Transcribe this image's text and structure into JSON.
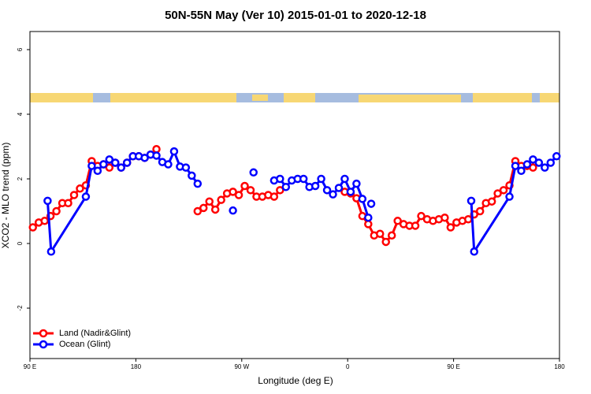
{
  "chart_data": {
    "type": "line",
    "title": "50N-55N May (Ver 10)   2015-01-01 to 2020-12-18",
    "x_label": "Longitude (deg E)",
    "y_label": "XCO2 - MLO trend (ppm)",
    "xlim": [
      87.5,
      540
    ],
    "ylim": [
      -3.56,
      6.56
    ],
    "xticks": [
      {
        "value": 90,
        "label": "90 E"
      },
      180,
      {
        "value": 270,
        "label": "90 W"
      },
      {
        "value": 360,
        "label": "0"
      },
      {
        "value": 450,
        "label": "90 E"
      },
      {
        "value": 540,
        "label": "180"
      }
    ],
    "yticks": [
      -2,
      0,
      2,
      4,
      6
    ],
    "legend": "bottom-left",
    "series": [
      {
        "name": "Land (Nadir&Glint)",
        "color": "#ff0000",
        "x": [
          92.5,
          97.5,
          102.5,
          107.5,
          112.5,
          117.5,
          122.5,
          127.5,
          132.5,
          137.5,
          142.5,
          147.5,
          152.5,
          157.5,
          162.5,
          167.5,
          172.5,
          177.5,
          182.5,
          187.5,
          192.5,
          197.5,
          null,
          232.5,
          237.5,
          242.5,
          247.5,
          252.5,
          257.5,
          262.5,
          267.5,
          272.5,
          277.5,
          282.5,
          287.5,
          292.5,
          297.5,
          302.5,
          null,
          357.5,
          362.5,
          367.5,
          372.5,
          377.5,
          382.5,
          387.5,
          392.5,
          397.5,
          402.5,
          407.5,
          412.5,
          417.5,
          422.5,
          427.5,
          432.5,
          437.5,
          442.5,
          447.5,
          452.5,
          457.5,
          462.5,
          467.5,
          472.5,
          477.5,
          482.5,
          487.5,
          492.5,
          497.5,
          502.5,
          507.5,
          512.5,
          517.5
        ],
        "values": [
          0.5,
          0.65,
          0.7,
          0.85,
          1.0,
          1.25,
          1.25,
          1.5,
          1.7,
          1.8,
          2.55,
          2.4,
          2.45,
          2.35,
          2.5,
          2.35,
          2.5,
          2.7,
          2.7,
          2.65,
          2.75,
          2.92,
          null,
          1.0,
          1.1,
          1.3,
          1.05,
          1.35,
          1.55,
          1.6,
          1.5,
          1.78,
          1.65,
          1.45,
          1.45,
          1.5,
          1.45,
          1.65,
          null,
          1.6,
          1.55,
          1.4,
          0.85,
          0.6,
          0.25,
          0.3,
          0.05,
          0.25,
          0.7,
          0.6,
          0.55,
          0.55,
          0.85,
          0.75,
          0.7,
          0.75,
          0.8,
          0.5,
          0.65,
          0.7,
          0.75,
          0.9,
          1.0,
          1.25,
          1.3,
          1.55,
          1.65,
          1.8,
          2.55,
          2.4,
          2.4,
          2.35
        ]
      },
      {
        "name": "Ocean (Glint)",
        "color": "#0000ff",
        "x": [
          105,
          108,
          137.5,
          142.5,
          147.5,
          152.5,
          157.5,
          162.5,
          167.5,
          172.5,
          177.5,
          182.5,
          187.5,
          192.5,
          197.5,
          202.5,
          207.5,
          212.5,
          217.5,
          222.5,
          227.5,
          232.5,
          null,
          262.5,
          null,
          280,
          null,
          297.5,
          302.5,
          307.5,
          312.5,
          317.5,
          322.5,
          327.5,
          332.5,
          337.5,
          342.5,
          347.5,
          352.5,
          357.5,
          362.5,
          367.5,
          372.5,
          377.5,
          null,
          380,
          null,
          465,
          467.5,
          497.5,
          502.5,
          507.5,
          512.5,
          517.5,
          522.5,
          527.5,
          532.5,
          537.5
        ],
        "values": [
          1.32,
          -0.25,
          1.45,
          2.4,
          2.25,
          2.45,
          2.6,
          2.5,
          2.35,
          2.5,
          2.7,
          2.7,
          2.65,
          2.75,
          2.72,
          2.52,
          2.45,
          2.85,
          2.38,
          2.35,
          2.1,
          1.85,
          null,
          1.02,
          null,
          2.2,
          null,
          1.95,
          2.0,
          1.75,
          1.95,
          2.0,
          2.0,
          1.75,
          1.78,
          2.0,
          1.65,
          1.52,
          1.72,
          2.0,
          1.6,
          1.85,
          1.38,
          0.8,
          null,
          1.23,
          null,
          1.32,
          -0.25,
          1.45,
          2.4,
          2.25,
          2.45,
          2.6,
          2.5,
          2.35,
          2.5,
          2.7
        ]
      }
    ]
  }
}
